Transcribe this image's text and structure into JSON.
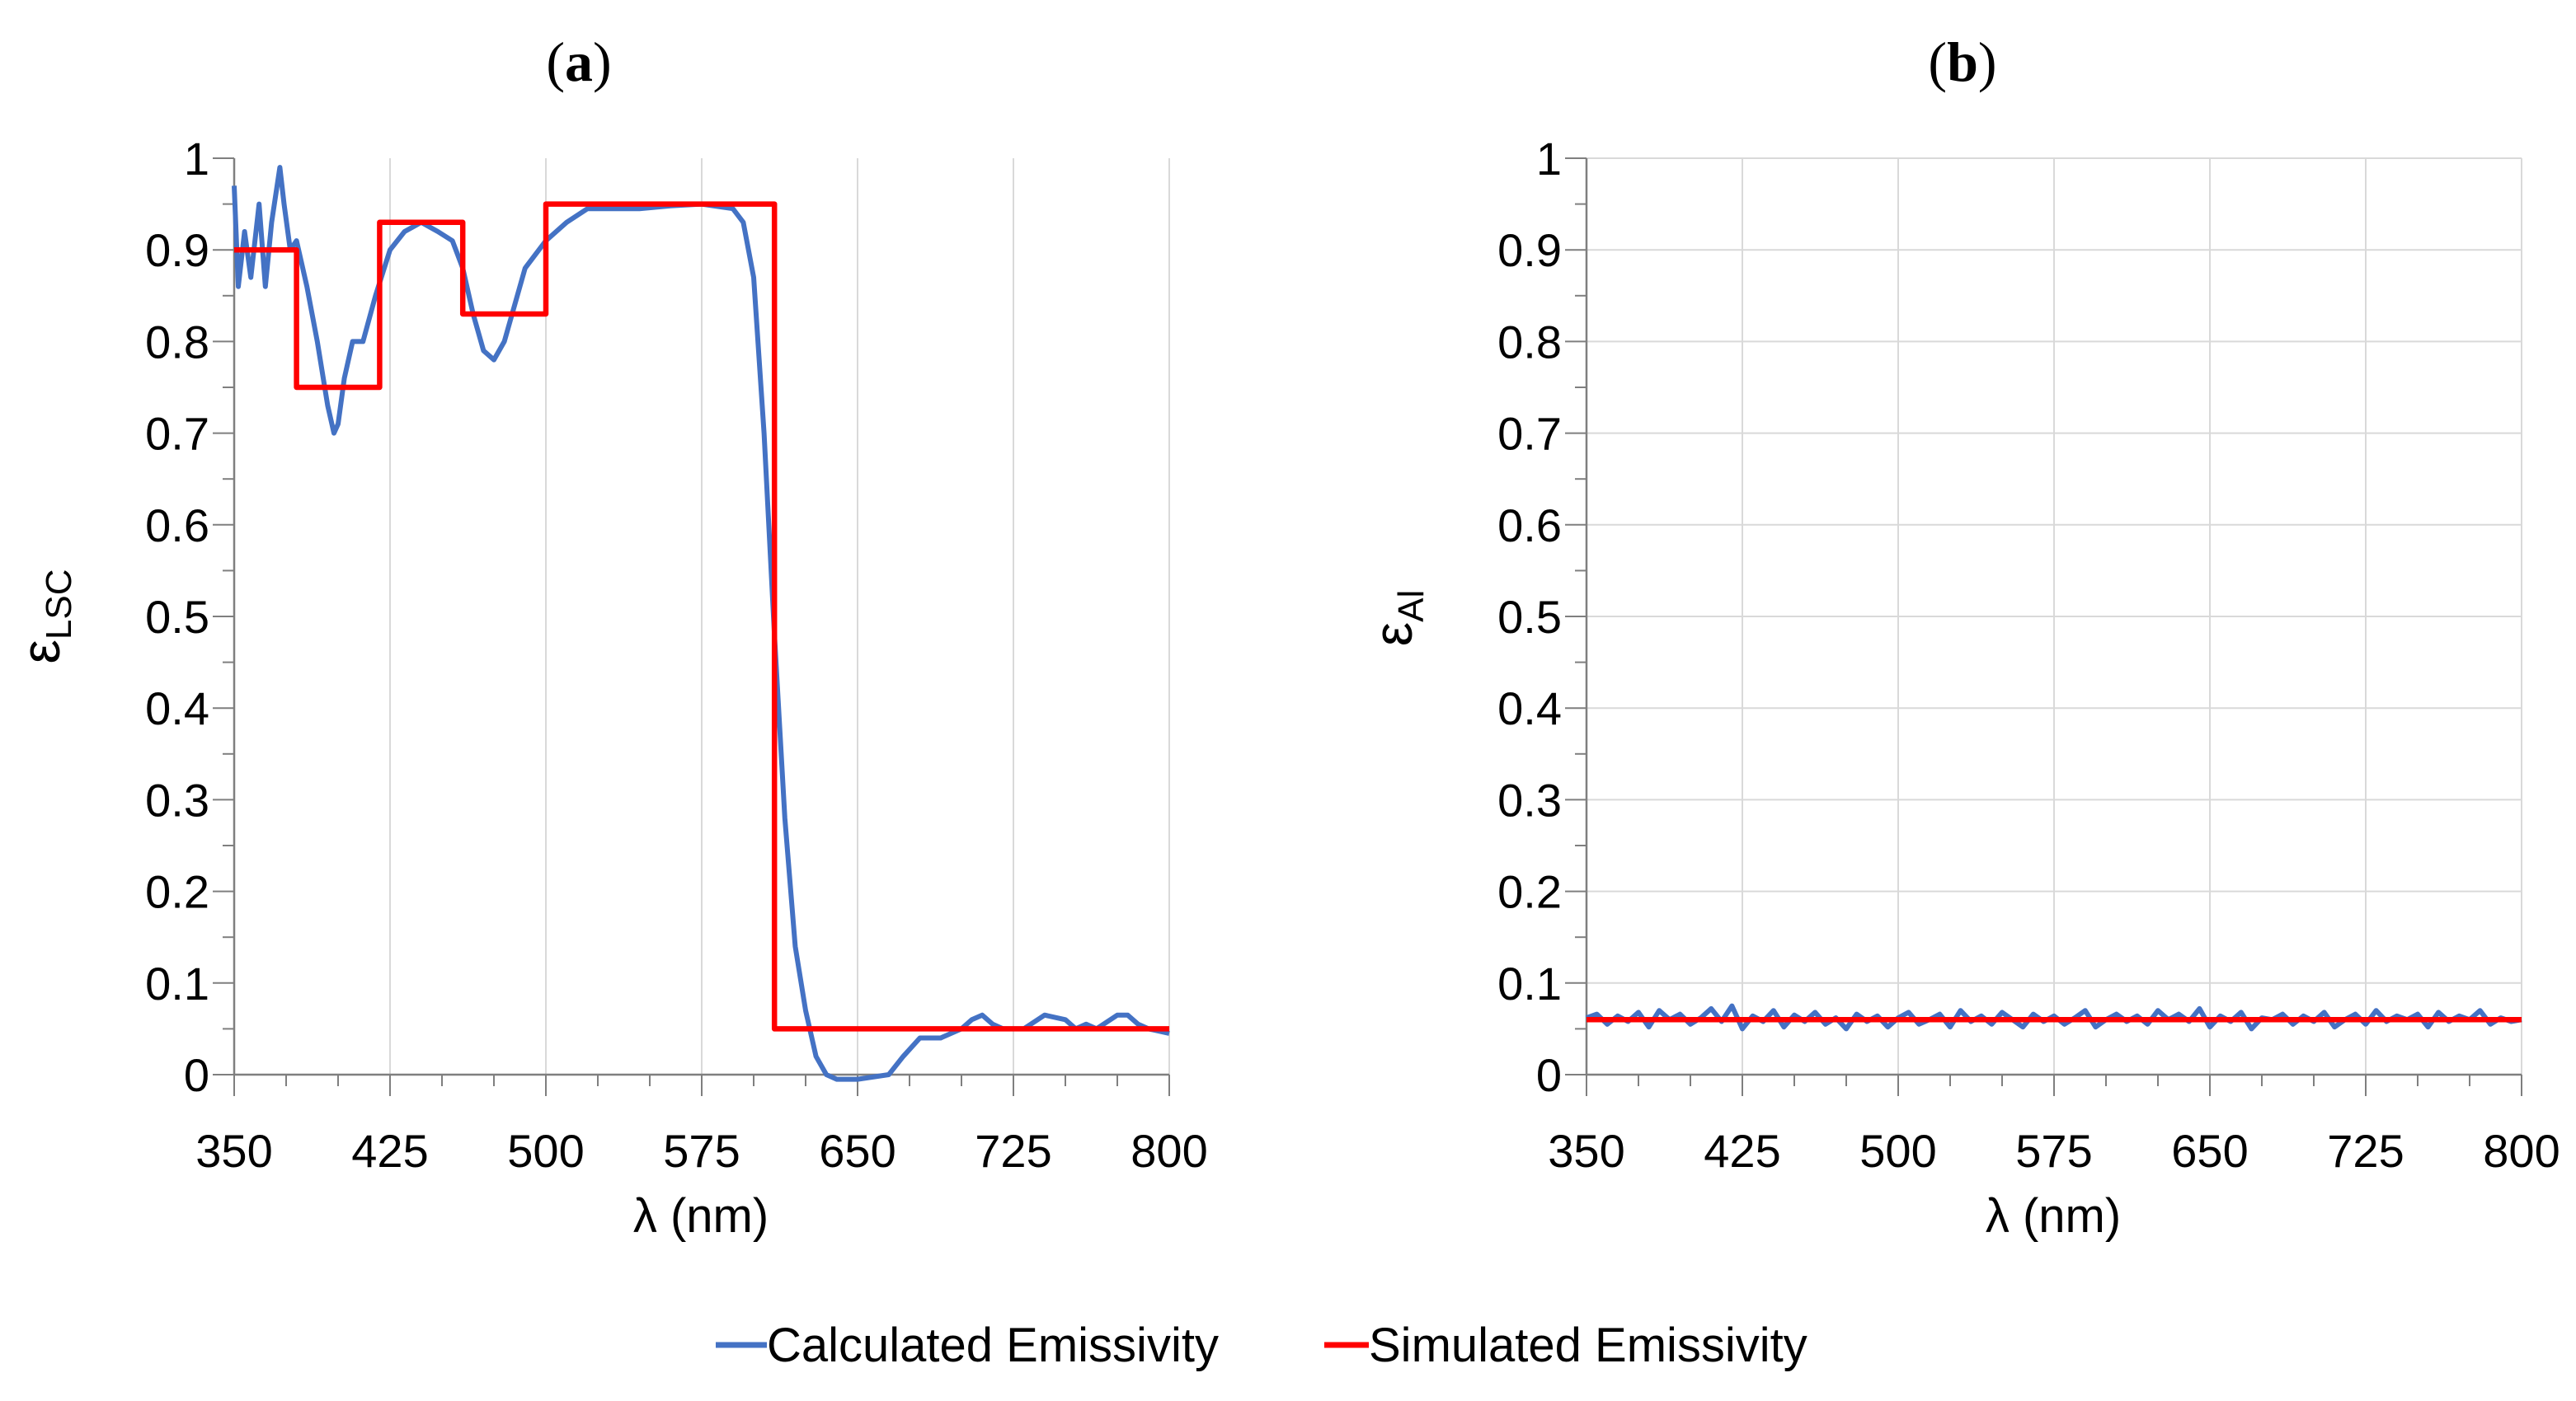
{
  "legend": {
    "items": [
      {
        "label": "Calculated Emissivity",
        "color": "#4472C4"
      },
      {
        "label": "Simulated Emissivity",
        "color": "#FF0000"
      }
    ],
    "placement": "bottom-center"
  },
  "chart_data": [
    {
      "type": "line",
      "panel_label": "a",
      "xlabel": "λ (nm)",
      "ylabel_base": "ε",
      "ylabel_sub": "LSC",
      "xlim": [
        350,
        800
      ],
      "ylim": [
        0,
        1
      ],
      "xticks": [
        "350",
        "425",
        "500",
        "575",
        "650",
        "725",
        "800"
      ],
      "yticks": [
        "0",
        "0.1",
        "0.2",
        "0.3",
        "0.4",
        "0.5",
        "0.6",
        "0.7",
        "0.8",
        "0.9",
        "1"
      ],
      "grid": "vertical",
      "series": [
        {
          "name": "Calculated Emissivity",
          "color": "#4472C4",
          "x": [
            350,
            352,
            355,
            358,
            362,
            365,
            368,
            372,
            374,
            377,
            380,
            385,
            390,
            395,
            398,
            400,
            403,
            407,
            412,
            418,
            425,
            432,
            440,
            448,
            455,
            460,
            465,
            470,
            475,
            480,
            490,
            500,
            510,
            520,
            530,
            545,
            560,
            575,
            590,
            595,
            600,
            605,
            610,
            615,
            620,
            625,
            630,
            635,
            640,
            650,
            665,
            672,
            680,
            690,
            700,
            705,
            710,
            715,
            720,
            730,
            740,
            750,
            755,
            760,
            765,
            775,
            780,
            785,
            790,
            800
          ],
          "y": [
            0.97,
            0.86,
            0.92,
            0.87,
            0.95,
            0.86,
            0.93,
            0.99,
            0.95,
            0.9,
            0.91,
            0.86,
            0.8,
            0.73,
            0.7,
            0.71,
            0.76,
            0.8,
            0.8,
            0.85,
            0.9,
            0.92,
            0.93,
            0.92,
            0.91,
            0.88,
            0.83,
            0.79,
            0.78,
            0.8,
            0.88,
            0.91,
            0.93,
            0.945,
            0.945,
            0.945,
            0.948,
            0.95,
            0.945,
            0.93,
            0.87,
            0.7,
            0.48,
            0.28,
            0.14,
            0.07,
            0.02,
            0.0,
            -0.005,
            -0.005,
            0.0,
            0.02,
            0.04,
            0.04,
            0.05,
            0.06,
            0.065,
            0.055,
            0.05,
            0.05,
            0.065,
            0.06,
            0.05,
            0.055,
            0.05,
            0.065,
            0.065,
            0.055,
            0.05,
            0.045
          ]
        },
        {
          "name": "Simulated Emissivity",
          "color": "#FF0000",
          "x": [
            350,
            380,
            380,
            420,
            420,
            460,
            460,
            500,
            500,
            610,
            610,
            800
          ],
          "y": [
            0.9,
            0.9,
            0.75,
            0.75,
            0.93,
            0.93,
            0.83,
            0.83,
            0.95,
            0.95,
            0.05,
            0.05
          ]
        }
      ]
    },
    {
      "type": "line",
      "panel_label": "b",
      "xlabel": "λ (nm)",
      "ylabel_base": "ε",
      "ylabel_sub": "Al",
      "xlim": [
        350,
        800
      ],
      "ylim": [
        0,
        1
      ],
      "xticks": [
        "350",
        "425",
        "500",
        "575",
        "650",
        "725",
        "800"
      ],
      "yticks": [
        "0",
        "0.1",
        "0.2",
        "0.3",
        "0.4",
        "0.5",
        "0.6",
        "0.7",
        "0.8",
        "0.9",
        "1"
      ],
      "grid": "both",
      "series": [
        {
          "name": "Calculated Emissivity",
          "color": "#4472C4",
          "x": [
            350,
            355,
            360,
            365,
            370,
            375,
            380,
            385,
            390,
            395,
            400,
            405,
            410,
            415,
            420,
            425,
            430,
            435,
            440,
            445,
            450,
            455,
            460,
            465,
            470,
            475,
            480,
            485,
            490,
            495,
            500,
            505,
            510,
            515,
            520,
            525,
            530,
            535,
            540,
            545,
            550,
            555,
            560,
            565,
            570,
            575,
            580,
            585,
            590,
            595,
            600,
            605,
            610,
            615,
            620,
            625,
            630,
            635,
            640,
            645,
            650,
            655,
            660,
            665,
            670,
            675,
            680,
            685,
            690,
            695,
            700,
            705,
            710,
            715,
            720,
            725,
            730,
            735,
            740,
            745,
            750,
            755,
            760,
            765,
            770,
            775,
            780,
            785,
            790,
            795,
            800
          ],
          "y": [
            0.062,
            0.066,
            0.055,
            0.064,
            0.058,
            0.068,
            0.052,
            0.07,
            0.06,
            0.066,
            0.055,
            0.062,
            0.072,
            0.058,
            0.075,
            0.05,
            0.064,
            0.058,
            0.07,
            0.052,
            0.065,
            0.058,
            0.068,
            0.055,
            0.062,
            0.05,
            0.066,
            0.058,
            0.064,
            0.052,
            0.062,
            0.068,
            0.055,
            0.06,
            0.066,
            0.052,
            0.07,
            0.058,
            0.064,
            0.055,
            0.068,
            0.06,
            0.052,
            0.066,
            0.058,
            0.064,
            0.055,
            0.062,
            0.07,
            0.052,
            0.06,
            0.066,
            0.058,
            0.064,
            0.055,
            0.07,
            0.06,
            0.066,
            0.058,
            0.072,
            0.052,
            0.064,
            0.058,
            0.068,
            0.05,
            0.062,
            0.06,
            0.066,
            0.055,
            0.064,
            0.058,
            0.068,
            0.052,
            0.06,
            0.066,
            0.055,
            0.07,
            0.058,
            0.064,
            0.06,
            0.066,
            0.052,
            0.068,
            0.058,
            0.064,
            0.06,
            0.07,
            0.055,
            0.062,
            0.058,
            0.06
          ]
        },
        {
          "name": "Simulated Emissivity",
          "color": "#FF0000",
          "x": [
            350,
            800
          ],
          "y": [
            0.06,
            0.06
          ]
        }
      ]
    }
  ]
}
